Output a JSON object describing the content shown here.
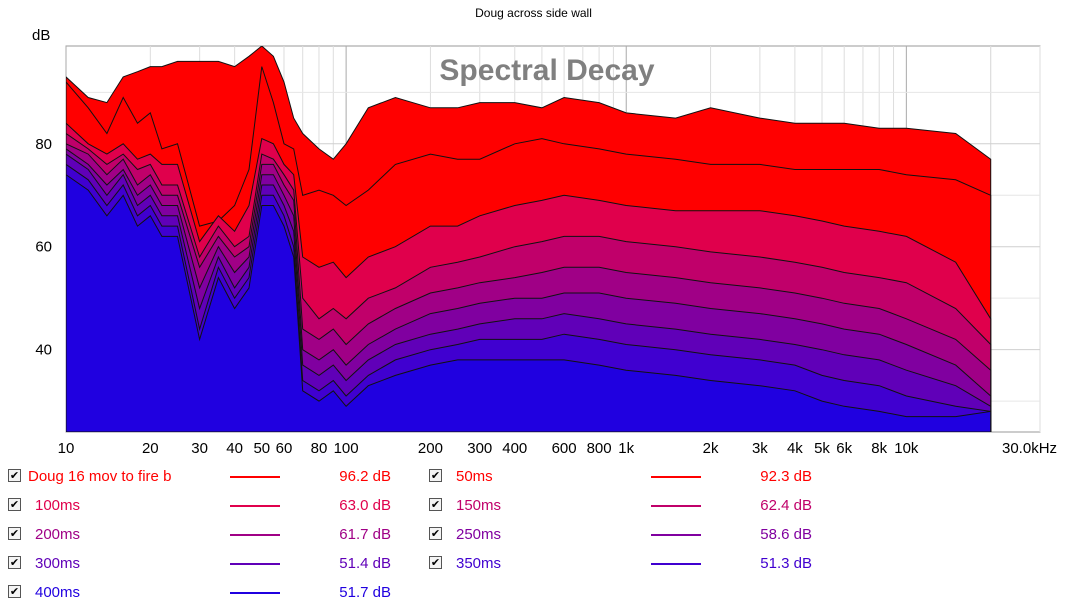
{
  "title": "Doug across side wall",
  "chart_data": {
    "type": "area",
    "title": "Doug across side wall",
    "subtitle": "Spectral Decay",
    "ylabel": "dB",
    "xlabel": "",
    "x_scale": "log",
    "xlim": [
      10,
      30000
    ],
    "ylim": [
      24,
      99
    ],
    "grid": true,
    "x_ticks": [
      10,
      20,
      30,
      40,
      50,
      60,
      80,
      100,
      200,
      300,
      400,
      600,
      800,
      1000,
      2000,
      3000,
      4000,
      5000,
      6000,
      8000,
      10000,
      30000
    ],
    "x_tick_labels": [
      "10",
      "20",
      "30",
      "40",
      "50",
      "60",
      "80",
      "100",
      "200",
      "300",
      "400",
      "600",
      "800",
      "1k",
      "2k",
      "3k",
      "4k",
      "5k",
      "6k",
      "8k",
      "10k",
      "30.0kHz"
    ],
    "y_ticks": [
      40,
      60,
      80
    ],
    "y_tick_labels": [
      "40",
      "60",
      "80"
    ],
    "x": [
      10,
      12,
      14,
      16,
      18,
      20,
      22,
      25,
      30,
      35,
      40,
      45,
      50,
      55,
      60,
      65,
      70,
      80,
      90,
      100,
      120,
      150,
      200,
      250,
      300,
      400,
      500,
      600,
      800,
      1000,
      1500,
      2000,
      3000,
      4000,
      5000,
      6000,
      8000,
      10000,
      15000,
      20000
    ],
    "series": [
      {
        "name": "Doug 16 mov to fire b",
        "color": "#ff0000",
        "values": [
          93,
          89,
          88,
          93,
          94,
          95,
          95,
          96,
          96,
          96,
          95,
          97,
          99,
          97,
          92,
          85,
          82,
          79,
          77,
          80,
          87,
          89,
          87,
          87,
          88,
          88,
          87,
          89,
          88,
          86,
          85,
          87,
          85,
          84,
          84,
          84,
          83,
          83,
          82,
          77
        ]
      },
      {
        "name": "50ms",
        "color": "#ff0000",
        "values": [
          92,
          87,
          82,
          89,
          84,
          86,
          79,
          80,
          64,
          65,
          68,
          75,
          95,
          88,
          80,
          79,
          70,
          71,
          70,
          68,
          71,
          76,
          78,
          77,
          77,
          80,
          81,
          80,
          79,
          78,
          77,
          76,
          76,
          75,
          75,
          75,
          75,
          74,
          73,
          70
        ]
      },
      {
        "name": "100ms",
        "color": "#e0004c",
        "values": [
          84,
          80,
          78,
          80,
          77,
          78,
          76,
          76,
          61,
          66,
          63,
          68,
          81,
          80,
          76,
          74,
          58,
          56,
          57,
          54,
          58,
          60,
          64,
          64,
          66,
          68,
          69,
          70,
          69,
          68,
          67,
          67,
          67,
          66,
          65,
          64,
          63,
          62,
          57,
          46
        ]
      },
      {
        "name": "150ms",
        "color": "#c0006a",
        "values": [
          82,
          79,
          76,
          78,
          75,
          76,
          72,
          72,
          58,
          64,
          60,
          62,
          78,
          77,
          74,
          71,
          50,
          46,
          48,
          46,
          50,
          52,
          56,
          57,
          58,
          60,
          61,
          62,
          62,
          61,
          60,
          59,
          58,
          57,
          56,
          55,
          54,
          53,
          48,
          41
        ]
      },
      {
        "name": "200ms",
        "color": "#a00086",
        "values": [
          80,
          78,
          74,
          77,
          72,
          74,
          70,
          70,
          56,
          62,
          58,
          60,
          76,
          76,
          72,
          69,
          44,
          42,
          44,
          41,
          45,
          48,
          51,
          52,
          53,
          54,
          55,
          56,
          56,
          55,
          54,
          53,
          52,
          51,
          50,
          49,
          48,
          46,
          42,
          36
        ]
      },
      {
        "name": "250ms",
        "color": "#8000a0",
        "values": [
          79,
          76,
          72,
          75,
          70,
          72,
          68,
          68,
          52,
          60,
          55,
          58,
          74,
          74,
          70,
          66,
          40,
          38,
          40,
          37,
          41,
          44,
          47,
          48,
          49,
          50,
          50,
          51,
          51,
          50,
          49,
          48,
          47,
          46,
          45,
          44,
          43,
          41,
          37,
          31
        ]
      },
      {
        "name": "300ms",
        "color": "#6000b8",
        "values": [
          78,
          75,
          70,
          74,
          68,
          70,
          66,
          66,
          48,
          58,
          52,
          56,
          72,
          72,
          68,
          63,
          37,
          35,
          37,
          34,
          38,
          41,
          43,
          44,
          45,
          46,
          46,
          47,
          46,
          45,
          44,
          43,
          42,
          41,
          40,
          39,
          38,
          36,
          33,
          29
        ]
      },
      {
        "name": "350ms",
        "color": "#4000d0",
        "values": [
          76,
          73,
          68,
          72,
          66,
          68,
          64,
          64,
          44,
          56,
          50,
          54,
          70,
          70,
          66,
          60,
          34,
          32,
          34,
          31,
          35,
          38,
          40,
          41,
          42,
          42,
          42,
          43,
          42,
          41,
          40,
          39,
          38,
          37,
          35,
          34,
          33,
          31,
          29,
          28
        ]
      },
      {
        "name": "400ms",
        "color": "#2000e0",
        "values": [
          74,
          71,
          66,
          70,
          64,
          66,
          62,
          62,
          42,
          54,
          48,
          52,
          68,
          68,
          64,
          58,
          32,
          30,
          32,
          29,
          33,
          35,
          37,
          38,
          38,
          38,
          38,
          38,
          37,
          36,
          35,
          34,
          33,
          32,
          30,
          29,
          28,
          27,
          27,
          28
        ]
      }
    ]
  },
  "overlay_title": "Spectral Decay",
  "legend": [
    {
      "name": "Doug 16 mov to fire b",
      "value": "96.2 dB",
      "color": "#ff0000",
      "checked": "✔"
    },
    {
      "name": "50ms",
      "value": "92.3 dB",
      "color": "#ff0000",
      "checked": "✔"
    },
    {
      "name": "100ms",
      "value": "63.0 dB",
      "color": "#e0004c",
      "checked": "✔"
    },
    {
      "name": "150ms",
      "value": "62.4 dB",
      "color": "#c0006a",
      "checked": "✔"
    },
    {
      "name": "200ms",
      "value": "61.7 dB",
      "color": "#a00086",
      "checked": "✔"
    },
    {
      "name": "250ms",
      "value": "58.6 dB",
      "color": "#8000a0",
      "checked": "✔"
    },
    {
      "name": "300ms",
      "value": "51.4 dB",
      "color": "#6000b8",
      "checked": "✔"
    },
    {
      "name": "350ms",
      "value": "51.3 dB",
      "color": "#4000d0",
      "checked": "✔"
    },
    {
      "name": "400ms",
      "value": "51.7 dB",
      "color": "#2000e0",
      "checked": "✔"
    }
  ]
}
